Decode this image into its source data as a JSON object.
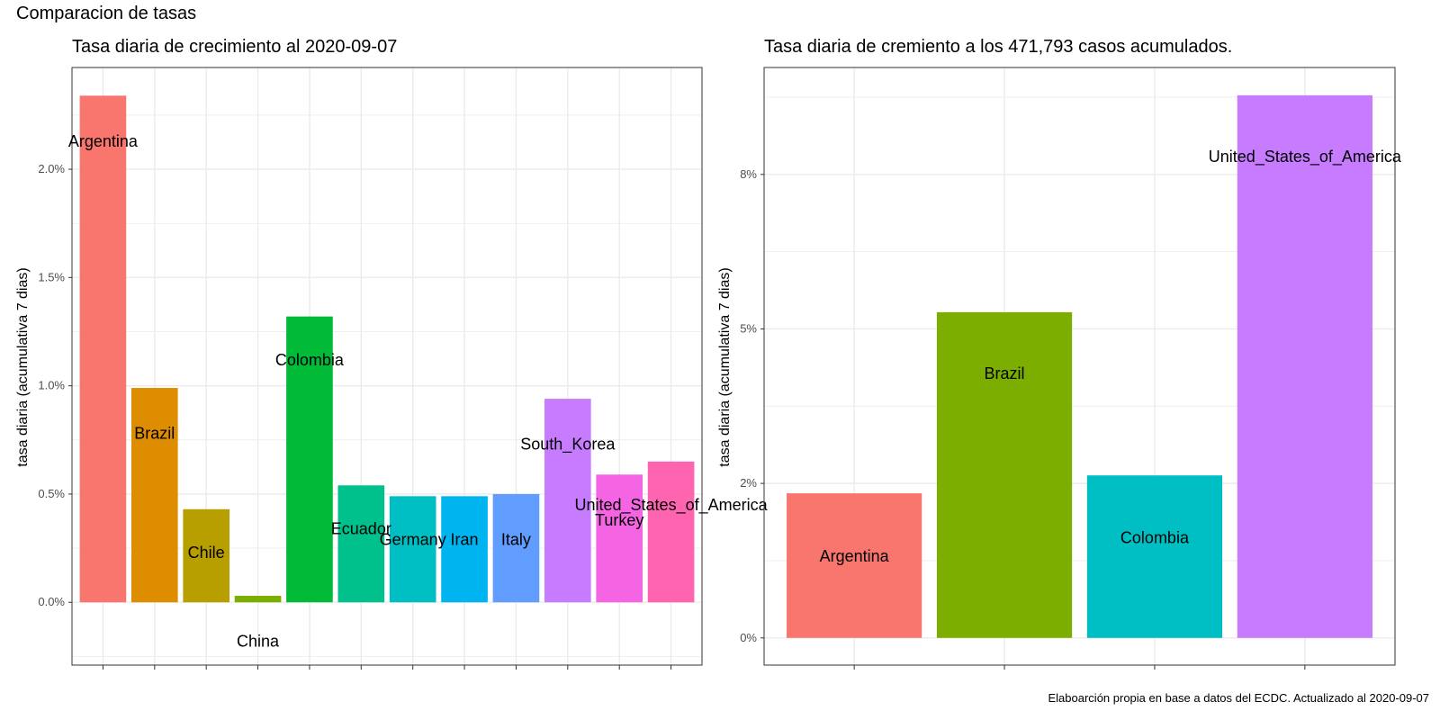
{
  "page": {
    "title": "Comparacion de tasas",
    "caption": "Elaboarción propia en base a datos del ECDC.  Actualizado al  2020-09-07"
  },
  "chart_data": [
    {
      "type": "bar",
      "title": "Tasa diaria de crecimiento al 2020-09-07",
      "xlabel": "",
      "ylabel": "tasa diaria (acumulativa 7 dias)",
      "ylim": [
        -0.0029,
        0.0247
      ],
      "yticks": [
        0,
        0.005,
        0.01,
        0.015,
        0.02
      ],
      "ytick_labels": [
        "0.0%",
        "0.5%",
        "1.0%",
        "1.5%",
        "2.0%"
      ],
      "grid": true,
      "legend": "none",
      "categories": [
        "Argentina",
        "Brazil",
        "Chile",
        "China",
        "Colombia",
        "Ecuador",
        "Germany",
        "Iran",
        "Italy",
        "South_Korea",
        "Turkey",
        "United_States_of_America"
      ],
      "values": [
        0.0234,
        0.0099,
        0.0043,
        0.0003,
        0.0132,
        0.0054,
        0.0049,
        0.0049,
        0.005,
        0.0094,
        0.0059,
        0.0065
      ],
      "label_y": [
        0.0213,
        0.0078,
        0.0023,
        -0.0018,
        0.0112,
        0.0034,
        0.0029,
        0.0029,
        0.0029,
        0.0073,
        0.0038,
        0.0045
      ],
      "colors": [
        "#F8766D",
        "#DE8C00",
        "#B79F00",
        "#7CAE00",
        "#00BA38",
        "#00C08B",
        "#00BFC4",
        "#00B4F0",
        "#619CFF",
        "#C77CFF",
        "#F564E3",
        "#FF64B0"
      ]
    },
    {
      "type": "bar",
      "title": "Tasa diaria de cremiento a los 471,793 casos acumulados.",
      "xlabel": "",
      "ylabel": "tasa diaria (acumulativa 7 dias)",
      "ylim": [
        -0.0044,
        0.0923
      ],
      "yticks": [
        0,
        0.025,
        0.05,
        0.075
      ],
      "ytick_labels": [
        "0%",
        "2%",
        "5%",
        "8%"
      ],
      "grid": true,
      "legend": "none",
      "categories": [
        "Argentina",
        "Brazil",
        "Colombia",
        "United_States_of_America"
      ],
      "values": [
        0.0234,
        0.0527,
        0.0263,
        0.0878
      ],
      "label_y": [
        0.0132,
        0.0428,
        0.0162,
        0.0779
      ],
      "colors": [
        "#F8766D",
        "#7CAE00",
        "#00BFC4",
        "#C77CFF"
      ]
    }
  ]
}
